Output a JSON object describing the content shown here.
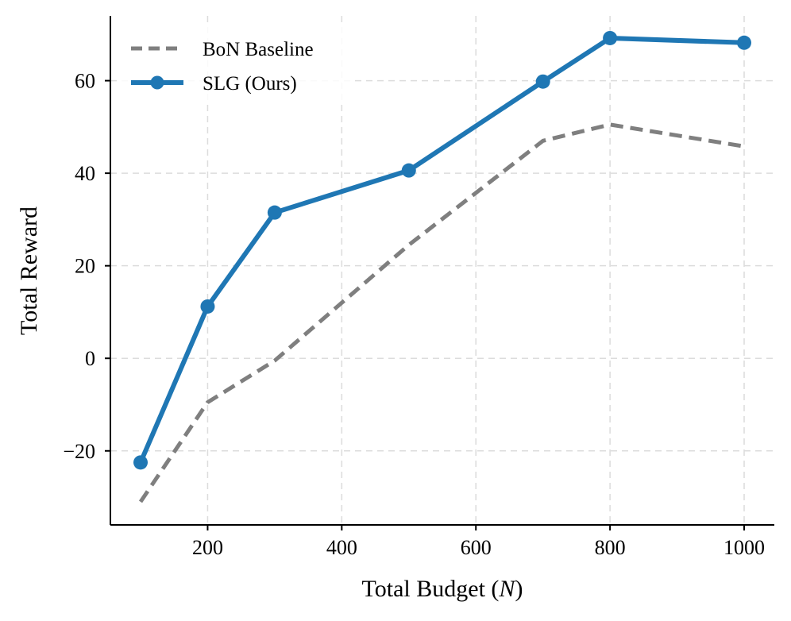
{
  "chart_data": {
    "type": "line",
    "title": "",
    "xlabel": "Total Budget (N)",
    "xlabel_parts": {
      "before": "Total Budget (",
      "italic": "N",
      "after": ")"
    },
    "ylabel": "Total Reward",
    "xlim": [
      55,
      1045
    ],
    "ylim": [
      -36,
      74
    ],
    "x_ticks": [
      200,
      400,
      600,
      800,
      1000
    ],
    "x_tick_labels": [
      "200",
      "400",
      "600",
      "800",
      "1000"
    ],
    "y_ticks": [
      -20,
      0,
      20,
      40,
      60
    ],
    "y_tick_labels": [
      "−20",
      "0",
      "20",
      "40",
      "60"
    ],
    "grid": true,
    "legend_position": "top-left",
    "series": [
      {
        "name": "BoN Baseline",
        "style": "dashed",
        "markers": false,
        "color": "#7f7f7f",
        "x": [
          100,
          200,
          300,
          500,
          700,
          800,
          1000
        ],
        "y": [
          -31,
          -9.5,
          -0.5,
          24.5,
          47,
          50.5,
          45.8
        ]
      },
      {
        "name": "SLG (Ours)",
        "style": "solid",
        "markers": true,
        "color": "#1f77b4",
        "x": [
          100,
          200,
          300,
          500,
          700,
          800,
          1000
        ],
        "y": [
          -22.5,
          11.2,
          31.5,
          40.6,
          59.8,
          69.2,
          68.2
        ]
      }
    ]
  }
}
